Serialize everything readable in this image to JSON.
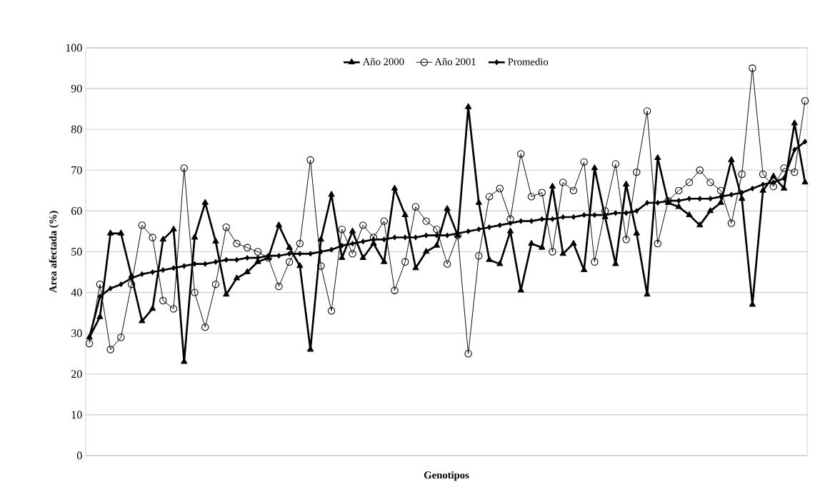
{
  "chart_data": {
    "type": "line",
    "xlabel": "Genotipos",
    "ylabel": "Area afectada (%)",
    "categories": [
      null,
      null,
      null,
      null,
      null,
      null,
      null,
      null,
      null,
      null,
      null,
      null,
      null,
      null,
      null,
      null,
      null,
      null,
      null,
      null,
      null,
      null,
      null,
      null,
      null,
      null,
      null,
      null,
      null,
      null,
      null,
      null,
      null,
      null,
      null,
      null,
      null,
      null,
      null,
      null,
      null,
      null,
      null,
      null,
      null,
      null,
      null,
      null,
      null,
      null,
      null,
      null,
      null,
      null,
      null,
      null,
      null,
      null,
      null,
      null,
      null,
      null,
      null,
      null,
      null,
      null,
      null,
      null,
      null
    ],
    "series": [
      {
        "name": "Año 2000",
        "color": "#000000",
        "marker": "triangle",
        "values": [
          29,
          34,
          54.5,
          54.5,
          44,
          33,
          36,
          53,
          55.5,
          23,
          53.5,
          62,
          52.5,
          39.5,
          43.5,
          45,
          47.5,
          48.5,
          56.5,
          51,
          46.5,
          26,
          53,
          64,
          48.5,
          55,
          48.5,
          52,
          47.5,
          65.5,
          59,
          46,
          50,
          51.5,
          60.5,
          54,
          85.5,
          62,
          48,
          47,
          55,
          40.5,
          52,
          51,
          66,
          49.5,
          52,
          45.5,
          70.5,
          58.5,
          47,
          66.5,
          54.5,
          39.5,
          73,
          62,
          61,
          59,
          56.5,
          60,
          62,
          72.5,
          63,
          37,
          65,
          68.5,
          65.5,
          81.5,
          67
        ]
      },
      {
        "name": "Año 2001",
        "color": "#000000",
        "marker": "circle",
        "values": [
          27.5,
          42,
          26,
          29,
          42,
          56.5,
          53.5,
          38,
          36,
          70.5,
          40,
          31.5,
          42,
          56,
          52,
          51,
          50,
          48.5,
          41.5,
          47.5,
          52,
          72.5,
          46.5,
          35.5,
          55.5,
          49.5,
          56.5,
          53.5,
          57.5,
          40.5,
          47.5,
          61,
          57.5,
          55.5,
          47,
          54,
          25,
          49,
          63.5,
          65.5,
          58,
          74,
          63.5,
          64.5,
          50,
          67,
          65,
          72,
          47.5,
          60,
          71.5,
          53,
          69.5,
          84.5,
          52,
          62.5,
          65,
          67,
          70,
          67,
          65,
          57,
          69,
          95,
          69,
          66,
          70.5,
          69.5,
          87
        ]
      },
      {
        "name": "Promedio",
        "color": "#000000",
        "marker": "diamond",
        "values": [
          29,
          39,
          41,
          42,
          43.5,
          44.5,
          45,
          45.5,
          46,
          46.5,
          47,
          47,
          47.5,
          48,
          48,
          48.5,
          48.5,
          49,
          49,
          49.5,
          49.5,
          49.5,
          50,
          50.5,
          51.5,
          52,
          52.5,
          53,
          53,
          53.5,
          53.5,
          53.5,
          54,
          54,
          54,
          54.5,
          55,
          55.5,
          56,
          56.5,
          57,
          57.5,
          57.5,
          58,
          58,
          58.5,
          58.5,
          59,
          59,
          59,
          59.5,
          59.5,
          60,
          62,
          62,
          62.5,
          62.5,
          63,
          63,
          63,
          63.5,
          64,
          64.5,
          65.5,
          66.5,
          67,
          68,
          75,
          77
        ]
      }
    ],
    "ylim": [
      0,
      100
    ],
    "yticks": [
      0,
      10,
      20,
      30,
      40,
      50,
      60,
      70,
      80,
      90,
      100
    ],
    "grid": "y",
    "legend": "top",
    "line_style": "solid"
  }
}
